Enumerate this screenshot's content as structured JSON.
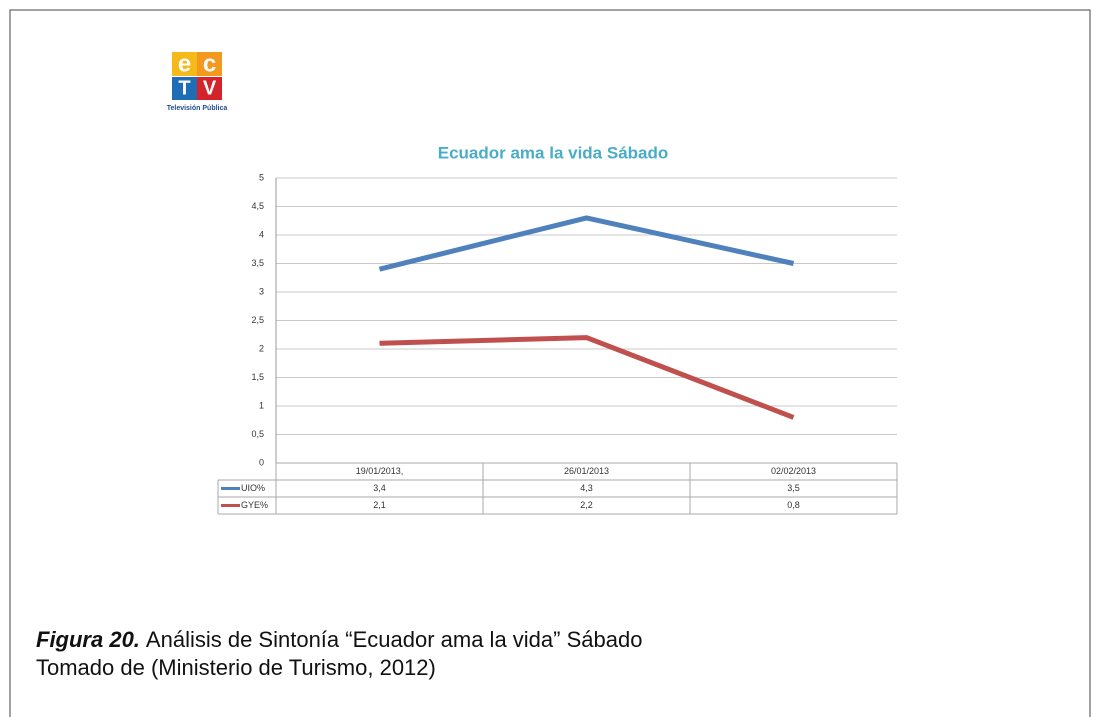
{
  "logo": {
    "letters": [
      "e",
      "c",
      "T",
      "V"
    ],
    "tagline": "Televisión Pública"
  },
  "chart_data": {
    "type": "line",
    "title": "Ecuador ama la vida Sábado",
    "categories": [
      "19/01/2013,",
      "26/01/2013",
      "02/02/2013"
    ],
    "series": [
      {
        "name": "UIO%",
        "color": "#4f81bd",
        "values": [
          3.4,
          4.3,
          3.5
        ],
        "value_labels": [
          "3,4",
          "4,3",
          "3,5"
        ]
      },
      {
        "name": "GYE%",
        "color": "#c0504d",
        "values": [
          2.1,
          2.2,
          0.8
        ],
        "value_labels": [
          "2,1",
          "2,2",
          "0,8"
        ]
      }
    ],
    "ylim": [
      0,
      5
    ],
    "yticks": [
      0,
      {
        "value": 0.5,
        "label": "0,5"
      },
      1,
      {
        "value": 1.5,
        "label": "1,5"
      },
      2,
      {
        "value": 2.5,
        "label": "2,5"
      },
      3,
      {
        "value": 3.5,
        "label": "3,5"
      },
      4,
      {
        "value": 4.5,
        "label": "4,5"
      },
      5
    ],
    "grid": true,
    "data_table": true
  },
  "caption": {
    "label": "Figura 20.",
    "text": "Análisis de Sintonía “Ecuador ama la vida” Sábado",
    "source": "Tomado de (Ministerio de Turismo, 2012)"
  }
}
